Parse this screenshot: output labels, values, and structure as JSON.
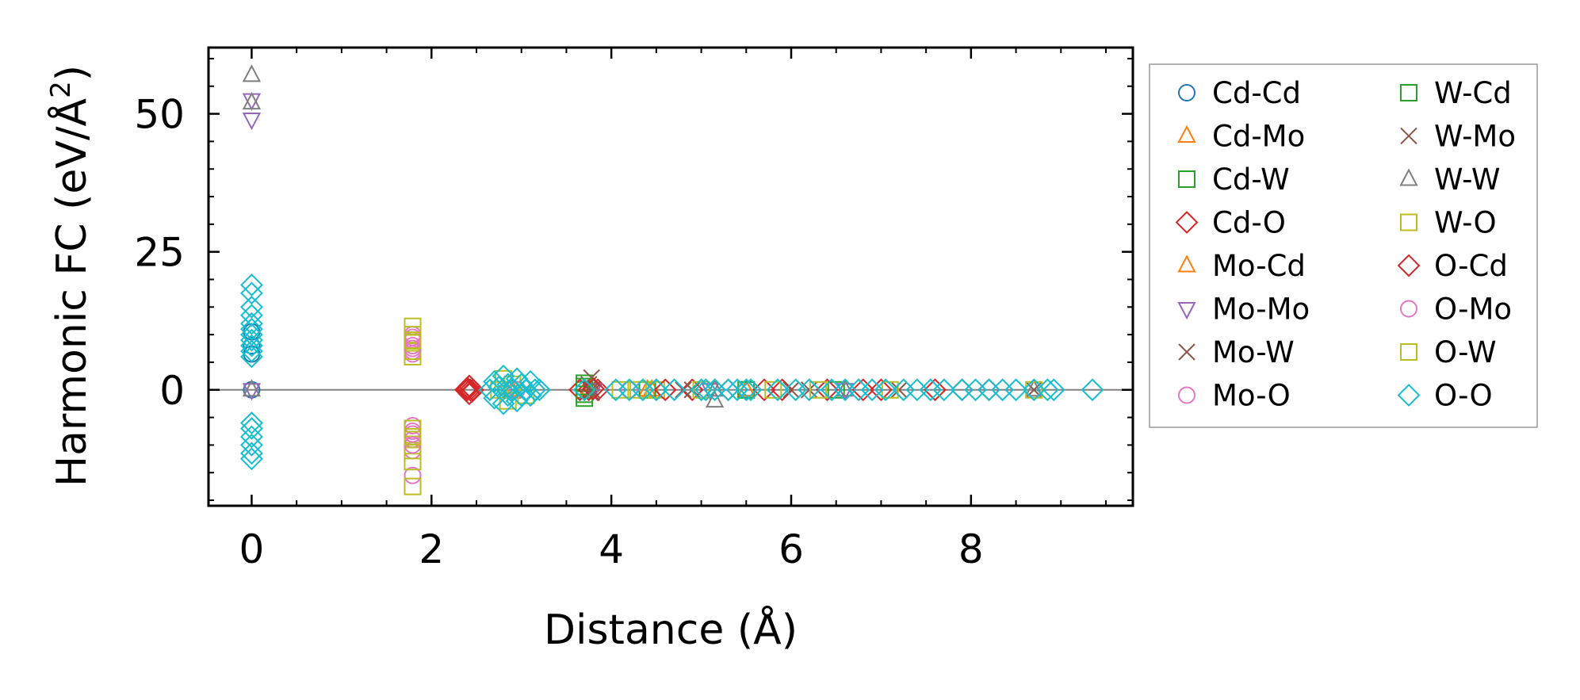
{
  "chart_data": {
    "type": "scatter",
    "xlabel": "Distance (Å)",
    "ylabel_main": "Harmonic FC (eV/Å",
    "ylabel_sup": "2",
    "ylabel_close": ")",
    "xlim": [
      -0.48,
      9.8
    ],
    "ylim": [
      -21,
      62
    ],
    "xticks": [
      0,
      2,
      4,
      6,
      8
    ],
    "yticks": [
      0,
      25,
      50
    ],
    "legend_position": "outside-right",
    "legend_columns": 2,
    "series": [
      {
        "name": "Cd-Cd",
        "marker": "circle",
        "color": "#1f77b4",
        "points": [
          [
            0.0,
            0.0
          ],
          [
            0.0,
            6.5
          ],
          [
            0.0,
            8.0
          ],
          [
            0.0,
            10.5
          ]
        ]
      },
      {
        "name": "Cd-Mo",
        "marker": "triangle-up",
        "color": "#ff7f0e",
        "points": [
          [
            2.9,
            0.0
          ],
          [
            3.75,
            0.0
          ],
          [
            4.4,
            0.0
          ],
          [
            5.5,
            0.0
          ]
        ]
      },
      {
        "name": "Cd-W",
        "marker": "square",
        "color": "#2ca02c",
        "points": [
          [
            2.9,
            0.0
          ],
          [
            3.7,
            0.0
          ],
          [
            3.7,
            1.2
          ],
          [
            3.7,
            -1.5
          ],
          [
            4.4,
            0.0
          ],
          [
            5.5,
            0.0
          ],
          [
            6.5,
            0.0
          ]
        ]
      },
      {
        "name": "Cd-O",
        "marker": "diamond",
        "color": "#d62728",
        "points": [
          [
            2.38,
            0.0
          ],
          [
            2.4,
            0.0
          ],
          [
            2.43,
            0.0
          ],
          [
            2.46,
            0.0
          ],
          [
            2.42,
            -0.7
          ],
          [
            2.42,
            0.7
          ],
          [
            3.65,
            0.0
          ],
          [
            3.75,
            0.0
          ],
          [
            3.85,
            0.0
          ],
          [
            4.5,
            0.0
          ],
          [
            4.9,
            0.0
          ],
          [
            5.3,
            0.0
          ],
          [
            5.9,
            0.0
          ],
          [
            6.4,
            0.0
          ],
          [
            7.0,
            0.0
          ],
          [
            7.6,
            0.0
          ],
          [
            8.2,
            0.0
          ]
        ]
      },
      {
        "name": "Mo-Cd",
        "marker": "triangle-up",
        "color": "#ff7f0e",
        "points": [
          [
            3.75,
            0.3
          ],
          [
            4.45,
            0.0
          ],
          [
            5.5,
            0.0
          ]
        ]
      },
      {
        "name": "Mo-Mo",
        "marker": "triangle-down",
        "color": "#9467bd",
        "points": [
          [
            0.0,
            52.5
          ],
          [
            0.0,
            49.0
          ],
          [
            0.0,
            0.0
          ],
          [
            3.8,
            0.0
          ],
          [
            5.1,
            0.0
          ],
          [
            6.6,
            0.0
          ]
        ]
      },
      {
        "name": "Mo-W",
        "marker": "x",
        "color": "#8c564b",
        "points": [
          [
            3.78,
            2.2
          ],
          [
            3.78,
            0.0
          ],
          [
            3.75,
            1.0
          ],
          [
            4.8,
            0.0
          ],
          [
            6.0,
            0.0
          ],
          [
            7.2,
            0.0
          ],
          [
            8.7,
            0.0
          ]
        ]
      },
      {
        "name": "Mo-O",
        "marker": "circle",
        "color": "#e377c2",
        "points": [
          [
            1.79,
            10.0
          ],
          [
            1.79,
            9.0
          ],
          [
            1.79,
            8.0
          ],
          [
            1.79,
            7.0
          ],
          [
            1.79,
            6.5
          ],
          [
            1.79,
            -6.5
          ],
          [
            1.79,
            -7.5
          ],
          [
            1.79,
            -9.0
          ],
          [
            1.79,
            -11.0
          ],
          [
            1.79,
            -15.5
          ],
          [
            2.9,
            0.0
          ],
          [
            4.2,
            0.0
          ]
        ]
      },
      {
        "name": "W-Cd",
        "marker": "square",
        "color": "#2ca02c",
        "points": [
          [
            3.7,
            0.6
          ],
          [
            3.7,
            -0.8
          ],
          [
            4.4,
            0.0
          ],
          [
            5.5,
            0.0
          ]
        ]
      },
      {
        "name": "W-Mo",
        "marker": "x",
        "color": "#8c564b",
        "points": [
          [
            3.78,
            -0.5
          ],
          [
            4.9,
            0.0
          ],
          [
            6.2,
            0.0
          ]
        ]
      },
      {
        "name": "W-W",
        "marker": "triangle-up",
        "color": "#7f7f7f",
        "points": [
          [
            0.0,
            57.0
          ],
          [
            0.0,
            52.0
          ],
          [
            0.0,
            0.0
          ],
          [
            5.15,
            -2.0
          ],
          [
            5.15,
            0.0
          ],
          [
            6.6,
            0.0
          ],
          [
            8.7,
            0.0
          ]
        ]
      },
      {
        "name": "W-O",
        "marker": "square",
        "color": "#bcbd22",
        "points": [
          [
            1.79,
            11.5
          ],
          [
            1.79,
            10.0
          ],
          [
            1.79,
            8.5
          ],
          [
            1.79,
            7.0
          ],
          [
            1.79,
            6.0
          ],
          [
            1.79,
            -7.0
          ],
          [
            1.79,
            -9.0
          ],
          [
            1.79,
            -11.0
          ],
          [
            1.79,
            -13.0
          ],
          [
            1.79,
            -17.5
          ],
          [
            2.75,
            0.0
          ],
          [
            2.8,
            2.0
          ],
          [
            2.85,
            -2.0
          ],
          [
            4.1,
            0.0
          ],
          [
            4.5,
            0.0
          ],
          [
            5.0,
            0.0
          ],
          [
            6.3,
            0.0
          ],
          [
            7.1,
            0.0
          ],
          [
            8.7,
            0.0
          ]
        ]
      },
      {
        "name": "O-Cd",
        "marker": "diamond",
        "color": "#d62728",
        "points": [
          [
            2.4,
            0.3
          ],
          [
            2.45,
            -0.3
          ],
          [
            3.8,
            0.2
          ],
          [
            4.6,
            0.0
          ],
          [
            5.7,
            0.0
          ],
          [
            6.8,
            0.0
          ],
          [
            7.9,
            0.0
          ]
        ]
      },
      {
        "name": "O-Mo",
        "marker": "circle",
        "color": "#e377c2",
        "points": [
          [
            1.79,
            9.5
          ],
          [
            1.79,
            7.5
          ],
          [
            1.79,
            -8.0
          ],
          [
            1.79,
            -10.0
          ],
          [
            2.95,
            0.0
          ]
        ]
      },
      {
        "name": "O-W",
        "marker": "square",
        "color": "#bcbd22",
        "points": [
          [
            1.79,
            9.0
          ],
          [
            1.79,
            -8.5
          ],
          [
            2.9,
            1.0
          ],
          [
            3.05,
            -1.0
          ],
          [
            4.3,
            0.0
          ],
          [
            5.8,
            0.0
          ]
        ]
      },
      {
        "name": "O-O",
        "marker": "diamond",
        "color": "#17becf",
        "points": [
          [
            0.0,
            19.0
          ],
          [
            0.0,
            17.5
          ],
          [
            0.0,
            15.0
          ],
          [
            0.0,
            13.5
          ],
          [
            0.0,
            12.0
          ],
          [
            0.0,
            11.0
          ],
          [
            0.0,
            10.0
          ],
          [
            0.0,
            9.0
          ],
          [
            0.0,
            8.0
          ],
          [
            0.0,
            7.0
          ],
          [
            0.0,
            6.0
          ],
          [
            0.0,
            -6.0
          ],
          [
            0.0,
            -7.0
          ],
          [
            0.0,
            -8.5
          ],
          [
            0.0,
            -10.0
          ],
          [
            0.0,
            -11.5
          ],
          [
            0.0,
            -12.5
          ],
          [
            2.65,
            0.0
          ],
          [
            2.7,
            1.5
          ],
          [
            2.7,
            -1.5
          ],
          [
            2.75,
            0.5
          ],
          [
            2.8,
            2.5
          ],
          [
            2.8,
            -2.5
          ],
          [
            2.85,
            1.0
          ],
          [
            2.85,
            -1.0
          ],
          [
            2.9,
            0.0
          ],
          [
            2.95,
            2.0
          ],
          [
            2.95,
            -2.0
          ],
          [
            3.0,
            1.0
          ],
          [
            3.0,
            -1.0
          ],
          [
            3.05,
            0.0
          ],
          [
            3.1,
            1.5
          ],
          [
            3.1,
            -1.0
          ],
          [
            3.15,
            0.0
          ],
          [
            3.2,
            0.0
          ],
          [
            3.7,
            0.0
          ],
          [
            4.05,
            0.0
          ],
          [
            4.2,
            0.0
          ],
          [
            4.35,
            0.0
          ],
          [
            4.5,
            0.0
          ],
          [
            4.7,
            0.0
          ],
          [
            5.0,
            0.0
          ],
          [
            5.05,
            0.0
          ],
          [
            5.15,
            0.0
          ],
          [
            5.3,
            0.0
          ],
          [
            5.4,
            0.0
          ],
          [
            5.5,
            0.0
          ],
          [
            5.55,
            0.0
          ],
          [
            5.85,
            0.0
          ],
          [
            6.05,
            0.0
          ],
          [
            6.2,
            0.0
          ],
          [
            6.45,
            0.0
          ],
          [
            6.6,
            0.0
          ],
          [
            6.75,
            0.0
          ],
          [
            6.9,
            0.0
          ],
          [
            7.05,
            0.0
          ],
          [
            7.25,
            0.0
          ],
          [
            7.4,
            0.0
          ],
          [
            7.55,
            0.0
          ],
          [
            7.7,
            0.0
          ],
          [
            7.9,
            0.0
          ],
          [
            8.05,
            0.0
          ],
          [
            8.2,
            0.0
          ],
          [
            8.35,
            0.0
          ],
          [
            8.5,
            0.0
          ],
          [
            8.7,
            0.0
          ],
          [
            8.85,
            0.0
          ],
          [
            8.92,
            0.0
          ],
          [
            9.35,
            0.0
          ]
        ]
      }
    ]
  }
}
